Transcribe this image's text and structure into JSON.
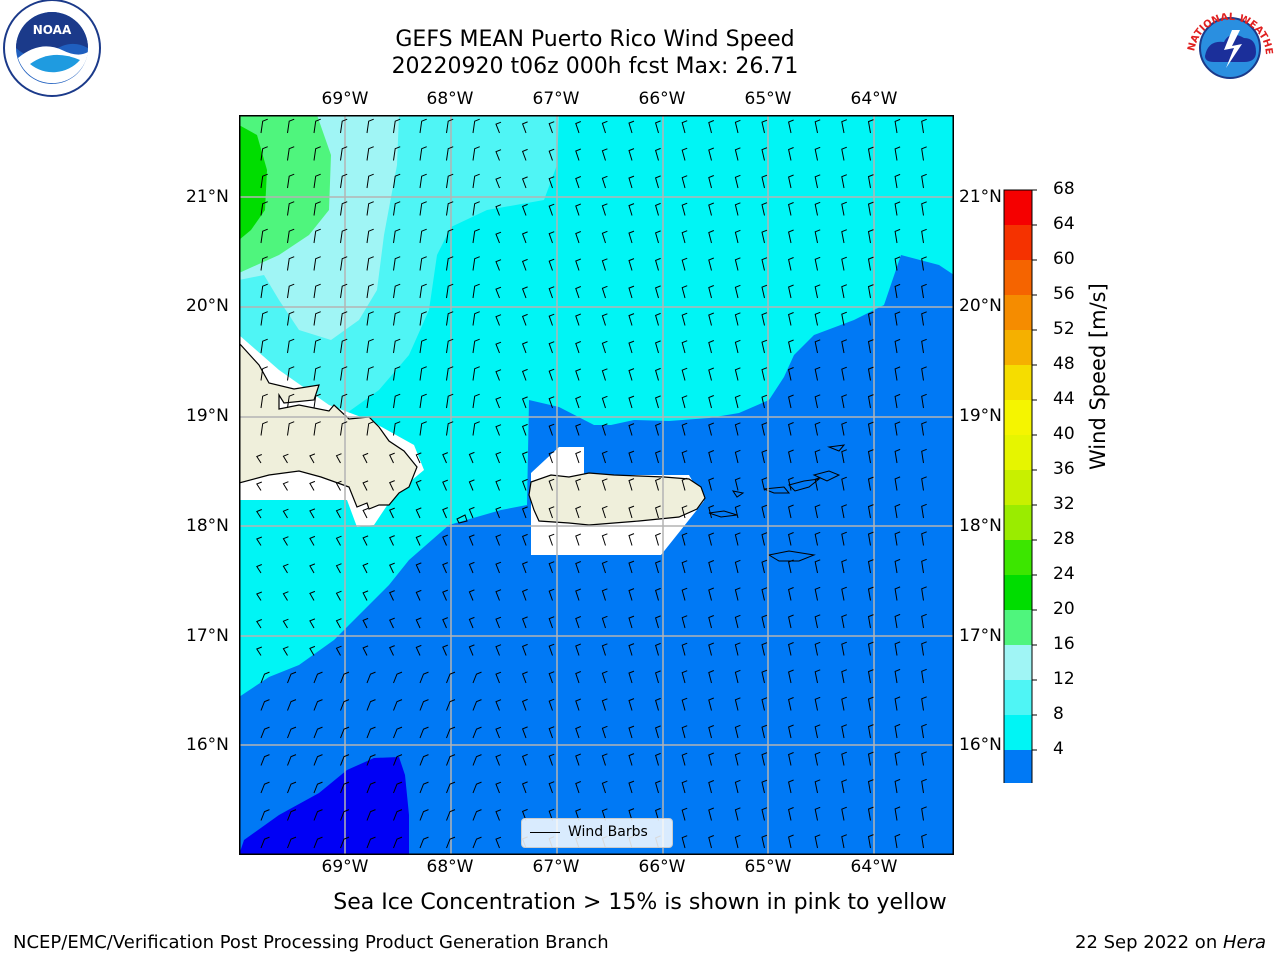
{
  "header": {
    "title_line1": "GEFS MEAN Puerto Rico Wind Speed",
    "title_line2": "20220920 t06z 000h fcst   Max: 26.71"
  },
  "logos": {
    "left": "NOAA",
    "right": "NATIONAL WEATHER SERVICE"
  },
  "map": {
    "lon_labels": [
      "69°W",
      "68°W",
      "67°W",
      "66°W",
      "65°W",
      "64°W"
    ],
    "lat_labels": [
      "21°N",
      "20°N",
      "19°N",
      "18°N",
      "17°N",
      "16°N"
    ],
    "legend_label": "Wind Barbs",
    "subtitle": "Sea Ice Concentration > 15% is shown in pink to yellow"
  },
  "colorbar": {
    "label": "Wind Speed [m/s]",
    "ticks": [
      "68",
      "64",
      "60",
      "56",
      "52",
      "48",
      "44",
      "40",
      "36",
      "32",
      "28",
      "24",
      "20",
      "16",
      "12",
      "8",
      "4"
    ],
    "levels": [
      4,
      8,
      12,
      16,
      20,
      24,
      28,
      32,
      36,
      40,
      44,
      48,
      52,
      56,
      60,
      64,
      68
    ],
    "colors": [
      "#0079f5",
      "#00f5f5",
      "#4ff5f5",
      "#a0f5f5",
      "#4ff57d",
      "#00dd00",
      "#3ce600",
      "#9aec00",
      "#c8f000",
      "#e6f500",
      "#f5f500",
      "#f5dd00",
      "#f5b000",
      "#f58c00",
      "#f56400",
      "#f53200",
      "#f50000"
    ],
    "under_color": "#0000f5"
  },
  "footer": {
    "left": "NCEP/EMC/Verification Post Processing Product Generation Branch",
    "date": "22 Sep 2022 on ",
    "machine": "Hera"
  }
}
